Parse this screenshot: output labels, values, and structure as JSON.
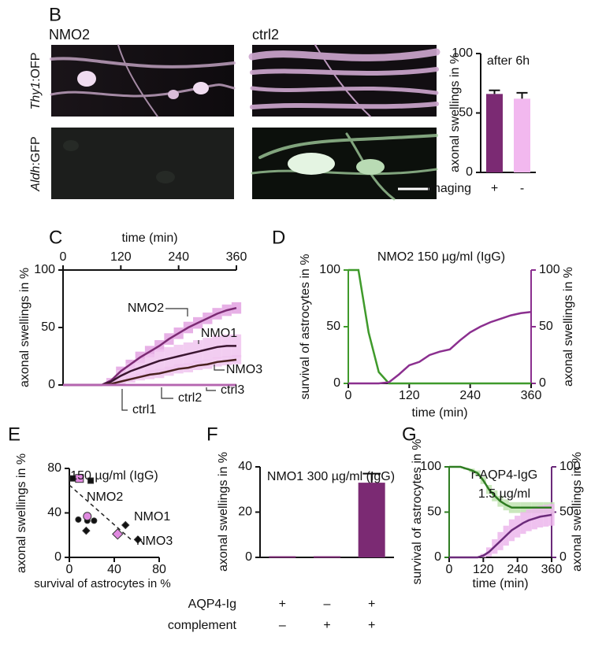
{
  "panel_labels": [
    "B",
    "C",
    "D",
    "E",
    "F",
    "G"
  ],
  "images": {
    "columns": [
      "NMO2",
      "ctrl2"
    ],
    "rows": [
      {
        "gene": "Thy1",
        "reporter": ":OFP"
      },
      {
        "gene": "Aldh",
        "reporter": ":GFP"
      }
    ]
  },
  "chart_data": [
    {
      "type": "bar",
      "title": "after 6h",
      "ylabel": "axonal swellings in %",
      "xlabel": "imaging",
      "categories": [
        "+",
        "-"
      ],
      "values": [
        66,
        62
      ],
      "errors": [
        3,
        5
      ],
      "colors": [
        "#7b2a73",
        "#f2b8ef"
      ],
      "ylim": [
        0,
        100
      ],
      "yticks": [
        0,
        50,
        100
      ]
    },
    {
      "type": "line",
      "xlabel": "time (min)",
      "ylabel": "axonal swellings in %",
      "x": [
        0,
        20,
        40,
        60,
        80,
        100,
        120,
        140,
        160,
        180,
        200,
        220,
        240,
        260,
        280,
        300,
        320,
        340,
        360
      ],
      "xlim": [
        0,
        360
      ],
      "xticks": [
        0,
        120,
        240,
        360
      ],
      "ylim": [
        0,
        100
      ],
      "yticks": [
        0,
        50,
        100
      ],
      "series": [
        {
          "name": "NMO2",
          "color": "#7b2a73",
          "band_color": "#e3a2e2",
          "values": [
            0,
            0,
            0,
            0,
            0,
            4,
            12,
            18,
            24,
            29,
            34,
            40,
            45,
            50,
            54,
            58,
            62,
            65,
            67
          ],
          "errors": [
            0,
            0,
            0,
            0,
            0,
            2,
            4,
            4,
            5,
            5,
            5,
            5,
            5,
            5,
            5,
            5,
            5,
            5,
            5
          ]
        },
        {
          "name": "NMO1",
          "color": "#3a1530",
          "band_color": "#f0c4ef",
          "values": [
            0,
            0,
            0,
            0,
            0,
            3,
            8,
            12,
            15,
            18,
            21,
            23,
            25,
            27,
            29,
            31,
            33,
            34,
            34
          ],
          "errors": [
            0,
            0,
            0,
            0,
            0,
            2,
            5,
            7,
            8,
            9,
            10,
            10,
            10,
            10,
            10,
            10,
            10,
            10,
            10
          ]
        },
        {
          "name": "NMO3",
          "color": "#4a2020",
          "band_color": "#f0c4ef",
          "values": [
            0,
            0,
            0,
            0,
            0,
            1,
            3,
            5,
            7,
            9,
            10,
            12,
            14,
            15,
            17,
            18,
            20,
            21,
            22
          ],
          "errors": [
            0,
            0,
            0,
            0,
            0,
            1,
            2,
            3,
            3,
            4,
            4,
            4,
            4,
            4,
            4,
            4,
            4,
            4,
            4
          ]
        },
        {
          "name": "ctrl1",
          "color": "#b565b0",
          "values": [
            0,
            0,
            0,
            0,
            0,
            0,
            0,
            0,
            0,
            0,
            0,
            0,
            0,
            0,
            0,
            0,
            0,
            0,
            0
          ]
        },
        {
          "name": "ctrl2",
          "color": "#b565b0",
          "values": [
            0,
            0,
            0,
            0,
            0,
            0,
            0,
            0,
            0,
            0,
            0,
            0,
            0,
            0,
            0,
            0,
            0,
            0,
            0
          ]
        },
        {
          "name": "ctrl3",
          "color": "#b565b0",
          "values": [
            0,
            0,
            0,
            0,
            0,
            0,
            0,
            0,
            0,
            0,
            0,
            0,
            0,
            0,
            0,
            0,
            0,
            0,
            0
          ]
        }
      ]
    },
    {
      "type": "line",
      "title": "NMO2 150 µg/ml (IgG)",
      "xlabel": "time (min)",
      "ylabel": "survival of astrocytes in %",
      "y2label": "axonal swellings in %",
      "x": [
        0,
        20,
        40,
        60,
        80,
        100,
        120,
        140,
        160,
        180,
        200,
        220,
        240,
        260,
        280,
        300,
        320,
        340,
        360
      ],
      "xlim": [
        0,
        360
      ],
      "xticks": [
        0,
        120,
        240,
        360
      ],
      "ylim": [
        0,
        100
      ],
      "yticks": [
        0,
        50,
        100
      ],
      "y2lim": [
        0,
        100
      ],
      "y2ticks": [
        0,
        50,
        100
      ],
      "series": [
        {
          "color": "#3f9a2b",
          "values": [
            100,
            100,
            45,
            10,
            0,
            0,
            0,
            0,
            0,
            0,
            0,
            0,
            0,
            0,
            0,
            0,
            0,
            0,
            0
          ]
        },
        {
          "color": "#8b2f8f",
          "axis": "y2",
          "values": [
            0,
            0,
            0,
            0,
            1,
            8,
            16,
            19,
            25,
            28,
            30,
            38,
            45,
            50,
            54,
            57,
            60,
            62,
            63
          ]
        }
      ]
    },
    {
      "type": "scatter",
      "title": "150 µg/ml (IgG)",
      "xlabel": "survival of astrocytes in %",
      "ylabel": "axonal swellings in %",
      "xlim": [
        0,
        80
      ],
      "xticks": [
        0,
        40,
        80
      ],
      "ylim": [
        0,
        80
      ],
      "yticks": [
        0,
        40,
        80
      ],
      "color": "#111111",
      "mean_color": "#e08ae0",
      "series": [
        {
          "name": "NMO2",
          "marker": "square",
          "x": [
            3,
            19
          ],
          "y": [
            71,
            69
          ],
          "mean_x": 9,
          "mean_y": 71
        },
        {
          "name": "NMO1",
          "marker": "circle",
          "x": [
            8,
            16,
            22
          ],
          "y": [
            34,
            33,
            33
          ],
          "mean_x": 16,
          "mean_y": 37
        },
        {
          "name": "NMO3",
          "marker": "diamond",
          "x": [
            15,
            50,
            61
          ],
          "y": [
            24,
            29,
            16
          ],
          "mean_x": 43,
          "mean_y": 21
        }
      ],
      "fit_x": [
        0,
        55
      ],
      "fit_y": [
        65,
        16
      ]
    },
    {
      "type": "bar",
      "title": "NMO1 300 µg/ml (IgG)",
      "ylabel": "axonal swellings in %",
      "values": [
        0.5,
        0.5,
        33
      ],
      "errors": [
        0,
        0,
        4
      ],
      "color": "#7b2a73",
      "ylim": [
        0,
        40
      ],
      "yticks": [
        0,
        20,
        40
      ],
      "conditions": [
        {
          "label": "AQP4-Ig",
          "signs": [
            "+",
            "–",
            "+"
          ]
        },
        {
          "label": "complement",
          "signs": [
            "–",
            "+",
            "+"
          ]
        }
      ]
    },
    {
      "type": "line",
      "title": "r-AQP4-IgG",
      "subtitle": "1.5 µg/ml",
      "xlabel": "time (min)",
      "ylabel": "survival of astrocytes in %",
      "y2label": "axonal swellings in %",
      "x": [
        0,
        20,
        40,
        60,
        80,
        100,
        120,
        140,
        160,
        180,
        200,
        220,
        240,
        260,
        280,
        300,
        320,
        340,
        360
      ],
      "xlim": [
        0,
        360
      ],
      "xticks": [
        0,
        120,
        240,
        360
      ],
      "ylim": [
        0,
        100
      ],
      "yticks": [
        0,
        50,
        100
      ],
      "y2lim": [
        0,
        100
      ],
      "y2ticks": [
        0,
        50,
        100
      ],
      "series": [
        {
          "color": "#2f7d22",
          "band_color": "#bfe3b0",
          "values": [
            100,
            100,
            100,
            98,
            96,
            93,
            85,
            75,
            68,
            62,
            58,
            55,
            55,
            55,
            55,
            55,
            55,
            55,
            55
          ],
          "errors": [
            0,
            0,
            0,
            1,
            2,
            3,
            4,
            5,
            6,
            6,
            6,
            6,
            6,
            6,
            6,
            6,
            6,
            6,
            6
          ]
        },
        {
          "color": "#6b2a7a",
          "band_color": "#ecb6ec",
          "axis": "y2",
          "values": [
            0,
            0,
            0,
            0,
            0,
            0,
            2,
            6,
            12,
            18,
            24,
            30,
            34,
            38,
            41,
            43,
            45,
            46,
            47
          ],
          "errors": [
            0,
            0,
            0,
            0,
            0,
            0,
            2,
            5,
            8,
            10,
            11,
            12,
            12,
            12,
            12,
            12,
            12,
            12,
            12
          ]
        }
      ]
    }
  ]
}
